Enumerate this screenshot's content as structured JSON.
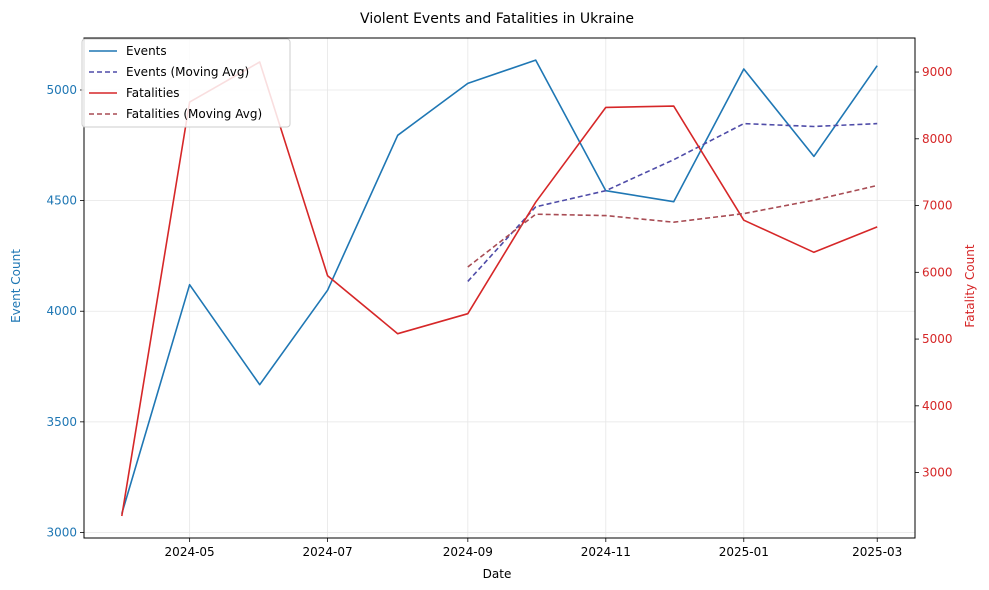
{
  "chart_data": {
    "type": "line",
    "title": "Violent Events and Fatalities in Ukraine",
    "xlabel": "Date",
    "ylabel_left": "Event Count",
    "ylabel_right": "Fatality Count",
    "x": [
      "2024-04",
      "2024-05",
      "2024-06",
      "2024-07",
      "2024-08",
      "2024-09",
      "2024-10",
      "2024-11",
      "2024-12",
      "2025-01",
      "2025-02",
      "2025-03"
    ],
    "x_ticks": [
      "2024-05",
      "2024-07",
      "2024-09",
      "2024-11",
      "2025-01",
      "2025-03"
    ],
    "y_left_ticks": [
      3000,
      3500,
      4000,
      4500,
      5000
    ],
    "y_right_ticks": [
      3000,
      4000,
      5000,
      6000,
      7000,
      8000,
      9000
    ],
    "ylim_left": [
      2975,
      5235
    ],
    "ylim_right": [
      2020,
      9510
    ],
    "series": [
      {
        "name": "Events",
        "axis": "left",
        "color": "#1f77b4",
        "dashed": false,
        "values": [
          3085,
          4120,
          3668,
          4095,
          4795,
          5030,
          5135,
          4545,
          4495,
          5095,
          4700,
          5110
        ]
      },
      {
        "name": "Events (Moving Avg)",
        "axis": "left",
        "color": "#4f4ca8",
        "dashed": true,
        "values": [
          null,
          null,
          null,
          null,
          null,
          4135,
          4472,
          4545,
          4685,
          4848,
          4835,
          4848
        ]
      },
      {
        "name": "Fatalities",
        "axis": "right",
        "color": "#d62728",
        "dashed": false,
        "values": [
          2350,
          8550,
          9150,
          5950,
          5080,
          5380,
          7050,
          8470,
          8490,
          6780,
          6300,
          6680
        ]
      },
      {
        "name": "Fatalities (Moving Avg)",
        "axis": "right",
        "color": "#a84c54",
        "dashed": true,
        "values": [
          null,
          null,
          null,
          null,
          null,
          6080,
          6870,
          6850,
          6750,
          6880,
          7080,
          7300
        ]
      }
    ],
    "grid": true,
    "legend": "top-left"
  }
}
